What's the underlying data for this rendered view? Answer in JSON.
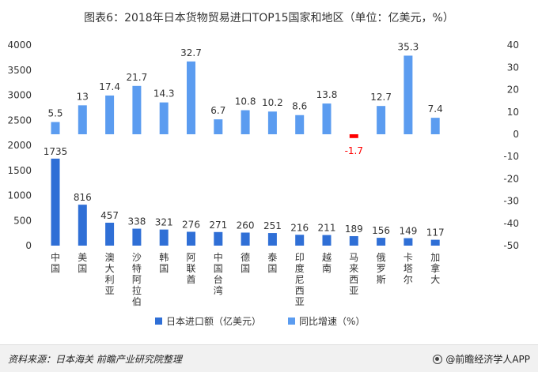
{
  "chart_data": {
    "type": "bar",
    "title": "图表6：2018年日本货物贸易进口TOP15国家和地区（单位：亿美元，%）",
    "categories": [
      "中国",
      "美国",
      "澳大利亚",
      "沙特阿拉伯",
      "韩国",
      "阿联酋",
      "中国台湾",
      "德国",
      "泰国",
      "印度尼西亚",
      "越南",
      "马来西亚",
      "俄罗斯",
      "卡塔尔",
      "加拿大"
    ],
    "series": [
      {
        "name": "日本进口额（亿美元）",
        "axis": "left",
        "color": "#2f6fd6",
        "values": [
          1735,
          816,
          457,
          338,
          321,
          276,
          271,
          260,
          251,
          216,
          211,
          189,
          156,
          149,
          117
        ]
      },
      {
        "name": "同比增速（%）",
        "axis": "right",
        "color": "#5b9cf0",
        "values": [
          5.5,
          13,
          17.4,
          21.7,
          14.3,
          32.7,
          6.7,
          10.8,
          10.2,
          8.6,
          13.8,
          -1.7,
          12.7,
          35.3,
          7.4
        ]
      }
    ],
    "left_axis": {
      "ylim": [
        0,
        4000
      ],
      "ticks": [
        0,
        500,
        1000,
        1500,
        2000,
        2500,
        3000,
        3500,
        4000
      ]
    },
    "right_axis": {
      "ylim": [
        -50,
        40
      ],
      "ticks": [
        40,
        30,
        20,
        10,
        0,
        -10,
        -20,
        -30,
        -40,
        -50
      ]
    },
    "negative_label_color": "#ff0000",
    "legend_position": "bottom",
    "grid": false
  },
  "source": "资料来源：日本海关 前瞻产业研究院整理",
  "brand": "@前瞻经济学人APP"
}
